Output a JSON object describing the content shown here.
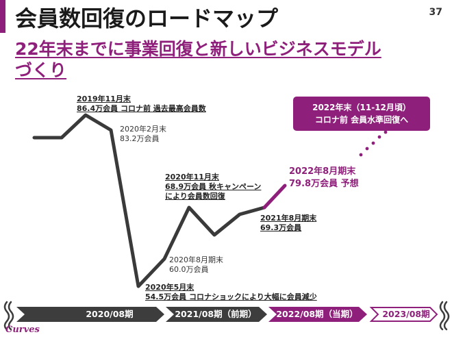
{
  "slide": {
    "title": "会員数回復のロードマップ",
    "page_number": "37",
    "subtitle_line1": "22年末までに事業回復と新しいビジネスモデル",
    "subtitle_line2": "づくり"
  },
  "annotations": {
    "peak_2019_11": {
      "line1": "2019年11月末",
      "line2": "86.4万会員 コロナ前 過去最高会員数"
    },
    "feb_2020": {
      "line1": "2020年2月末",
      "line2": "83.2万会員"
    },
    "nov_2020": {
      "line1": "2020年11月末",
      "line2": "68.9万会員 秋キャンペーン",
      "line3": "により会員数回復"
    },
    "aug_2020": {
      "line1": "2020年8月期末",
      "line2": "60.0万会員"
    },
    "may_2020": {
      "line1": "2020年5月末",
      "line2": "54.5万会員 コロナショックにより大幅に会員減少"
    },
    "aug_2021": {
      "line1": "2021年8月期末",
      "line2": "69.3万会員"
    },
    "forecast_2022": {
      "line1": "2022年8月期末",
      "line2": "79.8万会員 予想"
    }
  },
  "callout": {
    "line1": "2022年末（11-12月頃）",
    "line2": "コロナ前 会員水準回復へ"
  },
  "timeline": {
    "periods": [
      {
        "label": "2020/08期"
      },
      {
        "label": "2021/08期（前期）"
      },
      {
        "label": "2022/08期（当期）"
      },
      {
        "label": "2023/08期"
      }
    ]
  },
  "logo_text": "Curves",
  "colors": {
    "accent": "#8e1f7a",
    "dark_line": "#3a3a3a",
    "timeline_dark": "#3d3d3d"
  },
  "chart_data": {
    "type": "line",
    "unit": "万会員",
    "series": [
      {
        "values": [
          {
            "label": "2019年11月末",
            "value": 86.4
          },
          {
            "label": "2020年2月末",
            "value": 83.2
          },
          {
            "label": "2020年5月末",
            "value": 54.5
          },
          {
            "label": "2020年8月期末",
            "value": 60.0
          },
          {
            "label": "2020年11月末",
            "value": 68.9
          },
          {
            "label": "2021年8月期末",
            "value": 69.3
          },
          {
            "label": "2022年8月期末",
            "value": 79.8
          }
        ]
      }
    ]
  }
}
